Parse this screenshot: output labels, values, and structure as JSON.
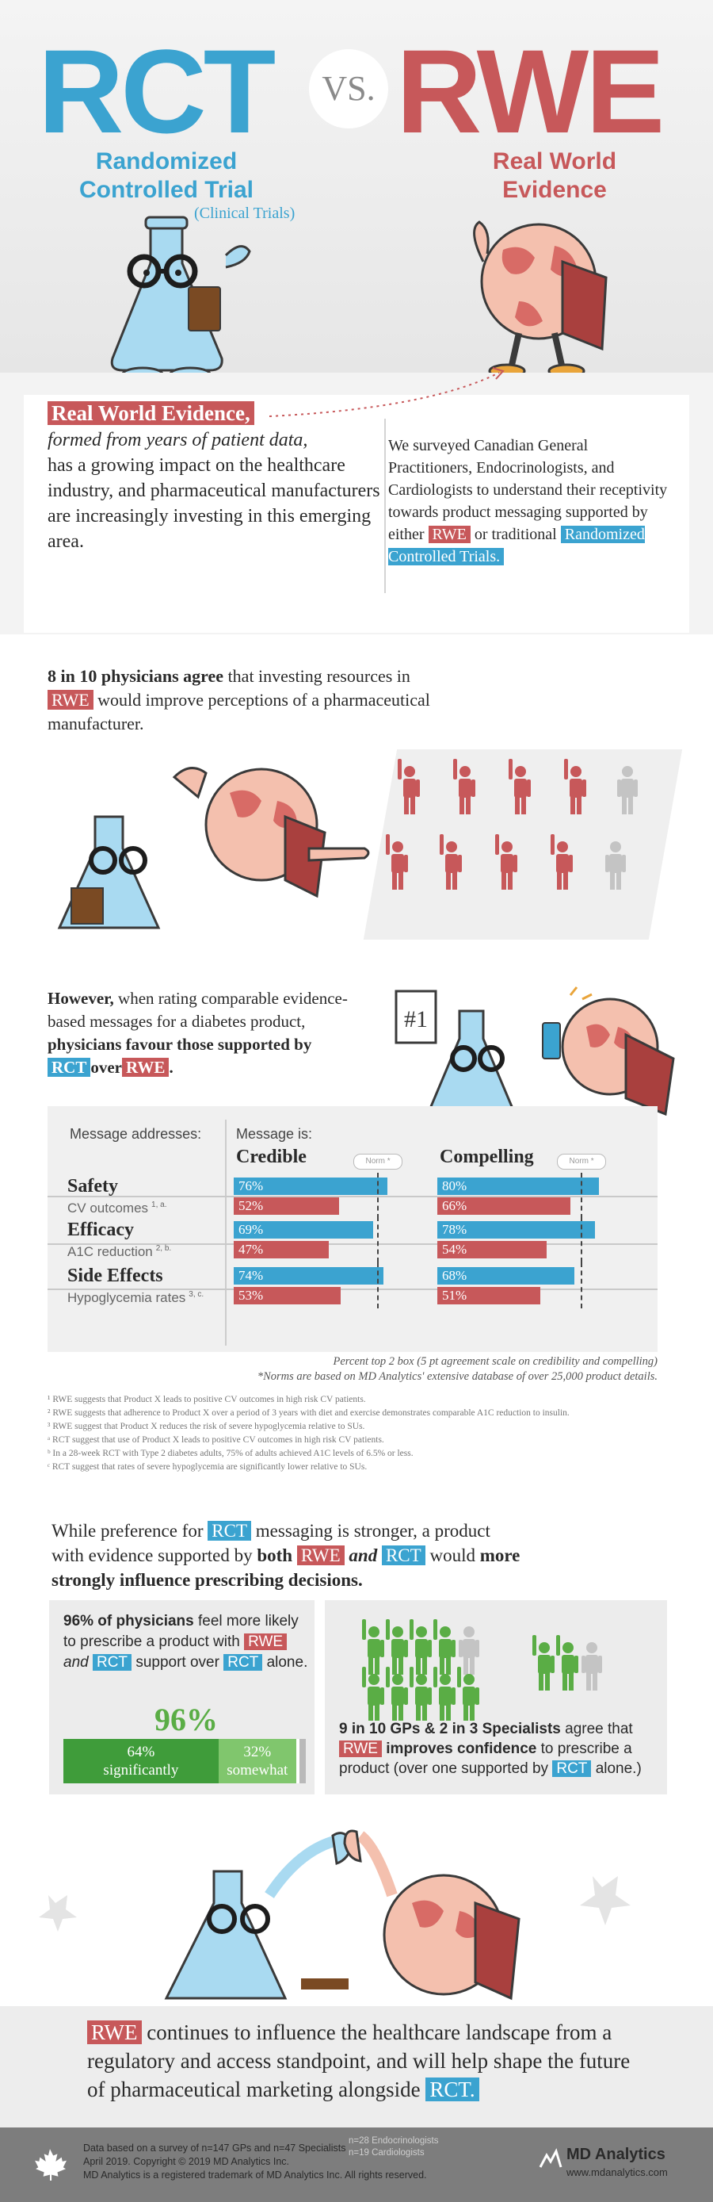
{
  "header": {
    "rct": "RCT",
    "vs": "VS.",
    "rwe": "RWE",
    "rct_full": "Randomized Controlled Trial",
    "rct_paren": "(Clinical Trials)",
    "rwe_full": "Real World Evidence"
  },
  "intro": {
    "left_highlight": "Real World Evidence,",
    "left_italic": "formed from years of patient data,",
    "left_rest": "has a growing impact on the healthcare industry, and pharmaceutical manufacturers are increasingly investing in this emerging area.",
    "right_text": "We surveyed Canadian General Practitioners, Endocrinologists, and Cardiologists to understand their receptivity towards product messaging supported by either",
    "right_rwe": "RWE",
    "right_or": "or traditional",
    "right_rct": "Randomized Controlled Trials."
  },
  "stat1": {
    "bold": "8 in 10 physicians agree",
    "text1": "that investing resources in",
    "rwe": "RWE",
    "text2": "would improve perceptions of a pharmaceutical manufacturer.",
    "agree_count": 8,
    "total_count": 10
  },
  "stat2": {
    "bold1": "However,",
    "text1": "when rating comparable evidence-based messages for a diabetes product,",
    "bold2": "physicians favour those supported by",
    "rct": "RCT",
    "over": "over",
    "rwe": "RWE",
    "rwe_end": ".",
    "clipboard_number": "#1"
  },
  "table": {
    "col_addresses": "Message addresses:",
    "col_is": "Message is:",
    "col_credible": "Credible",
    "col_compelling": "Compelling",
    "norm_label": "Norm *",
    "rows": [
      {
        "title": "Safety",
        "sub": "CV outcomes",
        "sup": "1, a.",
        "credible_rct": "76%",
        "credible_rwe": "52%",
        "compelling_rct": "80%",
        "compelling_rwe": "66%"
      },
      {
        "title": "Efficacy",
        "sub": "A1C reduction",
        "sup": "2, b.",
        "credible_rct": "69%",
        "credible_rwe": "47%",
        "compelling_rct": "78%",
        "compelling_rwe": "54%"
      },
      {
        "title": "Side Effects",
        "sub": "Hypoglycemia rates",
        "sup": "3, c.",
        "credible_rct": "74%",
        "credible_rwe": "53%",
        "compelling_rct": "68%",
        "compelling_rwe": "51%"
      }
    ],
    "note1": "Percent top 2 box (5 pt agreement scale on credibility and compelling)",
    "note2": "*Norms are based on MD Analytics' extensive database of over 25,000 product details."
  },
  "chart_data": {
    "type": "bar",
    "categories": [
      "Safety",
      "Efficacy",
      "Side Effects"
    ],
    "series": [
      {
        "name": "RCT",
        "credible": [
          76,
          69,
          74
        ],
        "compelling": [
          80,
          78,
          68
        ]
      },
      {
        "name": "RWE",
        "credible": [
          52,
          47,
          53
        ],
        "compelling": [
          66,
          54,
          51
        ]
      }
    ]
  },
  "footnotes": [
    "¹ RWE suggests that Product X leads to positive CV outcomes in high risk CV patients.",
    "² RWE suggests that adherence to Product X over a period of 3 years with diet and exercise demonstrates comparable A1C reduction to insulin.",
    "³ RWE suggest that Product X reduces the risk of severe hypoglycemia relative to SUs.",
    "ᵃ RCT suggest that use of Product X leads to positive CV outcomes in high risk CV patients.",
    "ᵇ In a 28-week RCT with Type 2 diabetes adults, 75% of adults achieved A1C levels of 6.5% or less.",
    "ᶜ RCT suggest that rates of severe hypoglycemia are significantly lower relative to SUs."
  ],
  "stat3": {
    "text1": "While preference for",
    "rct": "RCT",
    "text2": "messaging is stronger, a product with evidence supported by",
    "bold_both": "both",
    "rwe": "RWE",
    "and": "and",
    "rct2": "RCT",
    "text3": "would",
    "bold_end": "more strongly influence prescribing decisions."
  },
  "panel_left": {
    "bold": "96% of physicians",
    "text1": "feel more likely to prescribe a product with",
    "rwe": "RWE",
    "and": "and",
    "rct": "RCT",
    "text2": "support over",
    "rct2": "RCT",
    "text3": "alone.",
    "big": "96%",
    "sig_value": "64%",
    "sig_label": "significantly",
    "som_value": "32%",
    "som_label": "somewhat",
    "sig_pct": 64,
    "som_pct": 32
  },
  "panel_right": {
    "bold": "9 in 10 GPs & 2 in 3 Specialists",
    "text1": "agree that",
    "rwe": "RWE",
    "bold2": "improves confidence",
    "text2": "to prescribe a product (over one supported by",
    "rct": "RCT",
    "text3": "alone.)"
  },
  "closing": {
    "rwe": "RWE",
    "text": "continues to influence the healthcare landscape from a regulatory and access standpoint, and will help shape the future of pharmaceutical marketing alongside",
    "rct": "RCT."
  },
  "footer": {
    "line1": "Data based on a survey of n=147 GPs and n=47 Specialists",
    "line1b_1": "n=28 Endocrinologists",
    "line1b_2": "n=19 Cardiologists",
    "line2": "April 2019. Copyright © 2019 MD Analytics Inc.",
    "line3": "MD Analytics is a registered trademark of MD Analytics Inc. All rights reserved.",
    "brand": "MD Analytics",
    "url": "www.mdanalytics.com"
  },
  "colors": {
    "rct": "#3ba3d0",
    "rwe": "#c7585a",
    "green": "#5aad45"
  }
}
